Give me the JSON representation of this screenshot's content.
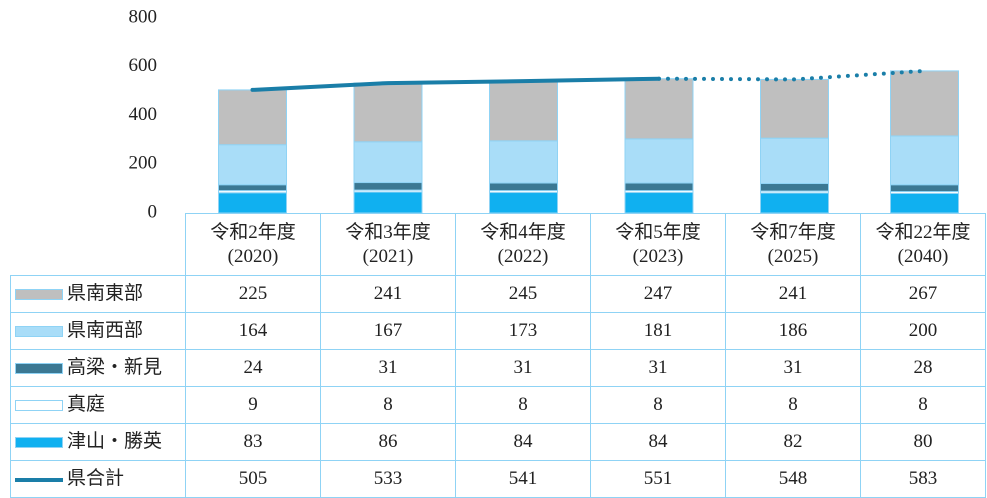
{
  "chart_data": {
    "type": "stacked_bar",
    "categories": [
      "令和2年度\n(2020)",
      "令和3年度\n(2021)",
      "令和4年度\n(2022)",
      "令和5年度\n(2023)",
      "令和7年度\n(2025)",
      "令和22年度\n(2040)"
    ],
    "series": [
      {
        "name": "県南東部",
        "color": "#bfbfbf",
        "values": [
          225,
          241,
          245,
          247,
          241,
          267
        ]
      },
      {
        "name": "県南西部",
        "color": "#a9ddf8",
        "values": [
          164,
          167,
          173,
          181,
          186,
          200
        ]
      },
      {
        "name": "高梁・新見",
        "color": "#3b7893",
        "values": [
          24,
          31,
          31,
          31,
          31,
          28
        ]
      },
      {
        "name": "真庭",
        "color": "#ffffff",
        "values": [
          9,
          8,
          8,
          8,
          8,
          8
        ]
      },
      {
        "name": "津山・勝英",
        "color": "#10b0f0",
        "values": [
          83,
          86,
          84,
          84,
          82,
          80
        ]
      },
      {
        "name": "県合計",
        "color": "#1a7ea8",
        "type": "line",
        "dotted_from_index": 3,
        "values": [
          505,
          533,
          541,
          551,
          548,
          583
        ]
      }
    ],
    "ylim": [
      0,
      800
    ],
    "yticks": [
      0,
      200,
      400,
      600,
      800
    ]
  }
}
